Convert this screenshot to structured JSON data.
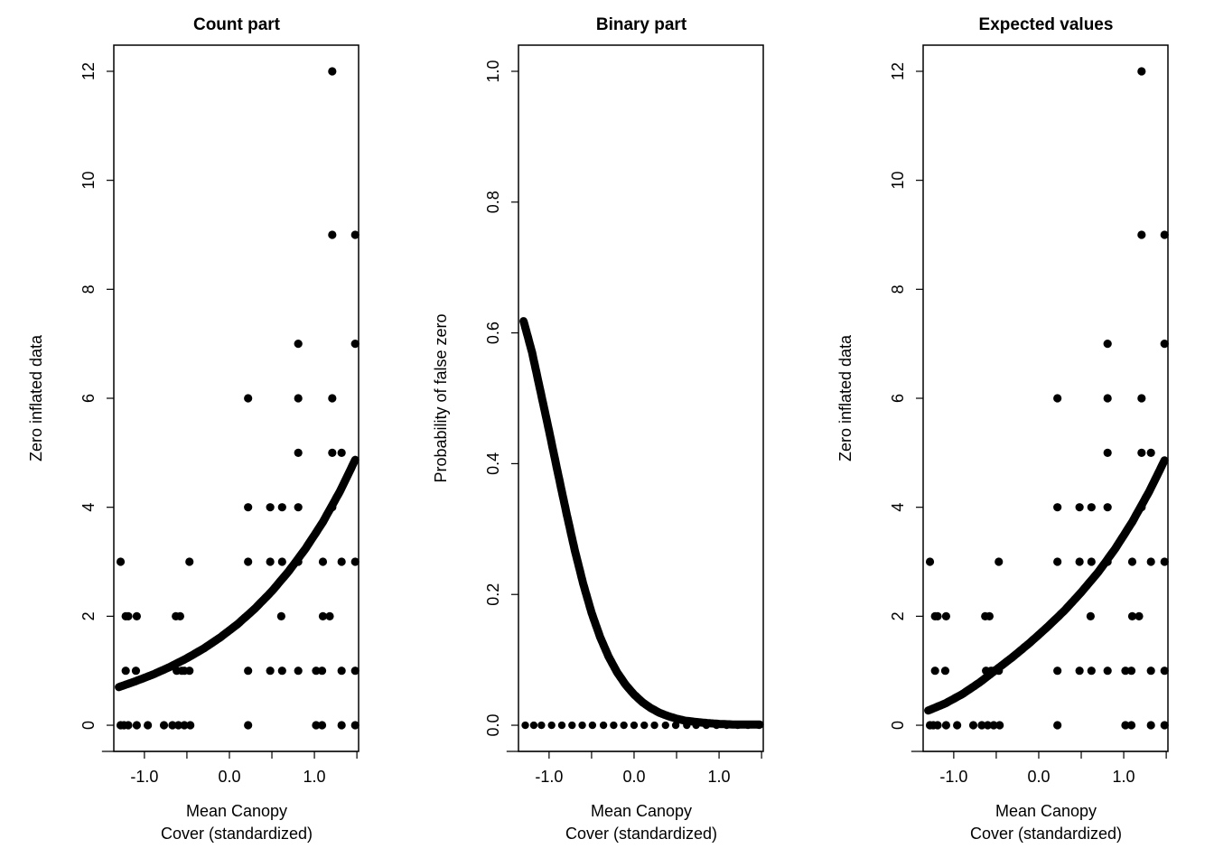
{
  "chart_data": [
    {
      "type": "scatter",
      "title": "Count part",
      "xlabel": [
        "Mean Canopy",
        "Cover (standardized)"
      ],
      "ylabel": "Zero inflated data",
      "xlim": [
        -1.36,
        1.52
      ],
      "ylim": [
        -0.48,
        12.48
      ],
      "xticks": [
        -1.0,
        0.0,
        1.0
      ],
      "xtick_labels": [
        "-1.0",
        "0.0",
        "1.0"
      ],
      "yticks": [
        0,
        2,
        4,
        6,
        8,
        10,
        12
      ],
      "ytick_labels": [
        "0",
        "2",
        "4",
        "6",
        "8",
        "10",
        "12"
      ],
      "grid": false,
      "points": [
        [
          -1.28,
          3
        ],
        [
          -1.28,
          0
        ],
        [
          -1.24,
          0
        ],
        [
          -1.22,
          1
        ],
        [
          -1.22,
          2
        ],
        [
          -1.19,
          2
        ],
        [
          -1.19,
          0
        ],
        [
          -1.1,
          1
        ],
        [
          -1.09,
          2
        ],
        [
          -1.09,
          0
        ],
        [
          -0.96,
          0
        ],
        [
          -0.77,
          0
        ],
        [
          -0.67,
          0
        ],
        [
          -0.63,
          2
        ],
        [
          -0.62,
          1
        ],
        [
          -0.6,
          0
        ],
        [
          -0.58,
          2
        ],
        [
          -0.56,
          1
        ],
        [
          -0.53,
          0
        ],
        [
          -0.53,
          1
        ],
        [
          -0.47,
          3
        ],
        [
          -0.46,
          0
        ],
        [
          -0.47,
          1
        ],
        [
          0.22,
          0
        ],
        [
          0.22,
          1
        ],
        [
          0.22,
          3
        ],
        [
          0.22,
          4
        ],
        [
          0.22,
          6
        ],
        [
          0.48,
          1
        ],
        [
          0.48,
          3
        ],
        [
          0.48,
          4
        ],
        [
          0.62,
          1
        ],
        [
          0.61,
          2
        ],
        [
          0.62,
          3
        ],
        [
          0.62,
          4
        ],
        [
          0.81,
          1
        ],
        [
          0.81,
          3
        ],
        [
          0.81,
          4
        ],
        [
          0.81,
          5
        ],
        [
          0.81,
          6
        ],
        [
          0.81,
          7
        ],
        [
          1.02,
          1
        ],
        [
          1.02,
          0
        ],
        [
          1.09,
          1
        ],
        [
          1.09,
          0
        ],
        [
          1.1,
          2
        ],
        [
          1.1,
          3
        ],
        [
          1.18,
          2
        ],
        [
          1.21,
          4
        ],
        [
          1.21,
          5
        ],
        [
          1.21,
          6
        ],
        [
          1.21,
          9
        ],
        [
          1.21,
          12
        ],
        [
          1.32,
          5
        ],
        [
          1.32,
          3
        ],
        [
          1.32,
          1
        ],
        [
          1.32,
          0
        ],
        [
          1.48,
          0
        ],
        [
          1.48,
          1
        ],
        [
          1.48,
          3
        ],
        [
          1.48,
          7
        ],
        [
          1.48,
          9
        ]
      ],
      "fitted_curve": {
        "name": "count model mean",
        "x": [
          -1.3,
          -1.1,
          -0.9,
          -0.7,
          -0.5,
          -0.3,
          -0.1,
          0.1,
          0.3,
          0.5,
          0.7,
          0.9,
          1.1,
          1.3,
          1.48
        ],
        "y": [
          0.7,
          0.81,
          0.93,
          1.07,
          1.23,
          1.41,
          1.62,
          1.86,
          2.14,
          2.46,
          2.83,
          3.25,
          3.73,
          4.29,
          4.87
        ]
      }
    },
    {
      "type": "line",
      "title": "Binary part",
      "xlabel": [
        "Mean Canopy",
        "Cover (standardized)"
      ],
      "ylabel": "Probability of false zero",
      "xlim": [
        -1.36,
        1.52
      ],
      "ylim": [
        -0.04,
        1.04
      ],
      "xticks": [
        -1.0,
        0.0,
        1.0
      ],
      "xtick_labels": [
        "-1.0",
        "0.0",
        "1.0"
      ],
      "yticks": [
        0.0,
        0.2,
        0.4,
        0.6,
        0.8,
        1.0
      ],
      "ytick_labels": [
        "0.0",
        "0.2",
        "0.4",
        "0.6",
        "0.8",
        "1.0"
      ],
      "grid": false,
      "curve": {
        "name": "probability of false zero",
        "x": [
          -1.3,
          -1.2,
          -1.1,
          -1.0,
          -0.9,
          -0.8,
          -0.7,
          -0.6,
          -0.5,
          -0.4,
          -0.3,
          -0.2,
          -0.1,
          0.0,
          0.1,
          0.2,
          0.3,
          0.4,
          0.5,
          0.6,
          0.8,
          1.0,
          1.2,
          1.48
        ],
        "y": [
          0.618,
          0.57,
          0.51,
          0.45,
          0.388,
          0.327,
          0.269,
          0.217,
          0.172,
          0.135,
          0.105,
          0.081,
          0.062,
          0.047,
          0.035,
          0.026,
          0.019,
          0.014,
          0.01,
          0.007,
          0.004,
          0.002,
          0.001,
          0.001
        ]
      },
      "baseline_points": {
        "y": 0,
        "x": [
          -1.28,
          -1.18,
          -1.09,
          -0.97,
          -0.85,
          -0.73,
          -0.61,
          -0.49,
          -0.36,
          -0.24,
          -0.12,
          0.0,
          0.12,
          0.24,
          0.37,
          0.49,
          0.62,
          0.73,
          0.85,
          0.97,
          1.09,
          1.22,
          1.34,
          1.47
        ]
      }
    },
    {
      "type": "scatter",
      "title": "Expected values",
      "xlabel": [
        "Mean Canopy",
        "Cover (standardized)"
      ],
      "ylabel": "Zero inflated data",
      "xlim": [
        -1.36,
        1.52
      ],
      "ylim": [
        -0.48,
        12.48
      ],
      "xticks": [
        -1.0,
        0.0,
        1.0
      ],
      "xtick_labels": [
        "-1.0",
        "0.0",
        "1.0"
      ],
      "yticks": [
        0,
        2,
        4,
        6,
        8,
        10,
        12
      ],
      "ytick_labels": [
        "0",
        "2",
        "4",
        "6",
        "8",
        "10",
        "12"
      ],
      "grid": false,
      "points": [
        [
          -1.28,
          3
        ],
        [
          -1.28,
          0
        ],
        [
          -1.24,
          0
        ],
        [
          -1.22,
          1
        ],
        [
          -1.22,
          2
        ],
        [
          -1.19,
          2
        ],
        [
          -1.19,
          0
        ],
        [
          -1.1,
          1
        ],
        [
          -1.09,
          2
        ],
        [
          -1.09,
          0
        ],
        [
          -0.96,
          0
        ],
        [
          -0.77,
          0
        ],
        [
          -0.67,
          0
        ],
        [
          -0.63,
          2
        ],
        [
          -0.62,
          1
        ],
        [
          -0.6,
          0
        ],
        [
          -0.58,
          2
        ],
        [
          -0.56,
          1
        ],
        [
          -0.53,
          0
        ],
        [
          -0.53,
          1
        ],
        [
          -0.47,
          3
        ],
        [
          -0.46,
          0
        ],
        [
          -0.47,
          1
        ],
        [
          0.22,
          0
        ],
        [
          0.22,
          1
        ],
        [
          0.22,
          3
        ],
        [
          0.22,
          4
        ],
        [
          0.22,
          6
        ],
        [
          0.48,
          1
        ],
        [
          0.48,
          3
        ],
        [
          0.48,
          4
        ],
        [
          0.62,
          1
        ],
        [
          0.61,
          2
        ],
        [
          0.62,
          3
        ],
        [
          0.62,
          4
        ],
        [
          0.81,
          1
        ],
        [
          0.81,
          3
        ],
        [
          0.81,
          4
        ],
        [
          0.81,
          5
        ],
        [
          0.81,
          6
        ],
        [
          0.81,
          7
        ],
        [
          1.02,
          1
        ],
        [
          1.02,
          0
        ],
        [
          1.09,
          1
        ],
        [
          1.09,
          0
        ],
        [
          1.1,
          2
        ],
        [
          1.1,
          3
        ],
        [
          1.18,
          2
        ],
        [
          1.21,
          4
        ],
        [
          1.21,
          5
        ],
        [
          1.21,
          6
        ],
        [
          1.21,
          9
        ],
        [
          1.21,
          12
        ],
        [
          1.32,
          5
        ],
        [
          1.32,
          3
        ],
        [
          1.32,
          1
        ],
        [
          1.32,
          0
        ],
        [
          1.48,
          0
        ],
        [
          1.48,
          1
        ],
        [
          1.48,
          3
        ],
        [
          1.48,
          7
        ],
        [
          1.48,
          9
        ]
      ],
      "fitted_curve": {
        "name": "expected value",
        "x": [
          -1.3,
          -1.1,
          -0.9,
          -0.7,
          -0.5,
          -0.3,
          -0.1,
          0.1,
          0.3,
          0.5,
          0.7,
          0.9,
          1.1,
          1.3,
          1.48
        ],
        "y": [
          0.27,
          0.4,
          0.57,
          0.78,
          1.02,
          1.26,
          1.52,
          1.8,
          2.1,
          2.44,
          2.81,
          3.24,
          3.73,
          4.29,
          4.86
        ]
      }
    }
  ]
}
